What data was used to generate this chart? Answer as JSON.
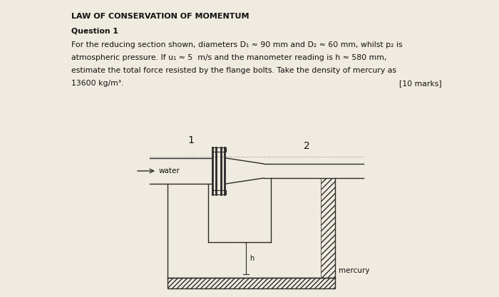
{
  "title": "LAW OF CONSERVATION OF MOMENTUM",
  "question": "Question 1",
  "body_lines": [
    "For the reducing section shown, diameters D₁ ≈ 90 mm and D₂ ≈ 60 mm, whilst p₂ is",
    "atmospheric pressure. If u₁ ≈ 5  m/s and the manometer reading is h ≈ 580 mm,",
    "estimate the total force resisted by the flange bolts. Take the density of mercury as",
    "13600 kg/m³."
  ],
  "marks": "[10 marks]",
  "bg_color": "#f0ebe0",
  "text_color": "#111111",
  "diagram_label_1": "1",
  "diagram_label_2": "2",
  "diagram_label_water": "water",
  "diagram_label_mercury": "mercury",
  "diagram_label_h": "h",
  "title_fontsize": 8.0,
  "body_fontsize": 7.8
}
